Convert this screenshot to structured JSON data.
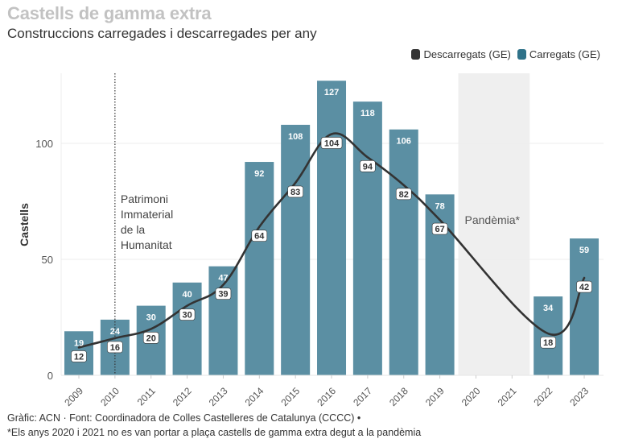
{
  "header": {
    "title": "Castells de gamma extra",
    "subtitle": "Construccions carregades i descarregades per any"
  },
  "legend": [
    {
      "label": "Descarregats (GE)",
      "color": "#333333"
    },
    {
      "label": "Carregats (GE)",
      "color": "#2f7289"
    }
  ],
  "footer": {
    "source": "Gràfic: ACN · Font: Coordinadora de Colles Castelleres de Catalunya (CCCC) •",
    "note": "*Els anys 2020 i 2021 no es van portar a plaça castells de gamma extra degut a la pandèmia"
  },
  "chart_data": {
    "type": "bar",
    "title": "Castells de gamma extra",
    "subtitle": "Construccions carregades i descarregades per any",
    "xlabel": "",
    "ylabel": "Castells",
    "ylim": [
      0,
      130
    ],
    "yticks": [
      0,
      50,
      100
    ],
    "grid": true,
    "legend_position": "top-right",
    "categories": [
      "2009",
      "2010",
      "2011",
      "2012",
      "2013",
      "2014",
      "2015",
      "2016",
      "2017",
      "2018",
      "2019",
      "2020",
      "2021",
      "2022",
      "2023"
    ],
    "series": [
      {
        "name": "Carregats (GE)",
        "type": "bar",
        "color": "#5b8fa3",
        "values": [
          19,
          24,
          30,
          40,
          47,
          92,
          108,
          127,
          118,
          106,
          78,
          null,
          null,
          34,
          59
        ]
      },
      {
        "name": "Descarregats (GE)",
        "type": "line",
        "color": "#333333",
        "values": [
          12,
          16,
          20,
          30,
          39,
          64,
          83,
          104,
          94,
          82,
          67,
          null,
          null,
          18,
          42
        ]
      }
    ],
    "annotations": [
      {
        "type": "vline",
        "x": "2010",
        "label": "Patrimoni Immaterial de la Humanitat",
        "lines": [
          "Patrimoni",
          "Immaterial",
          "de la",
          "Humanitat"
        ]
      },
      {
        "type": "band",
        "from": "2020",
        "to": "2021",
        "label": "Pandèmia*"
      }
    ]
  }
}
